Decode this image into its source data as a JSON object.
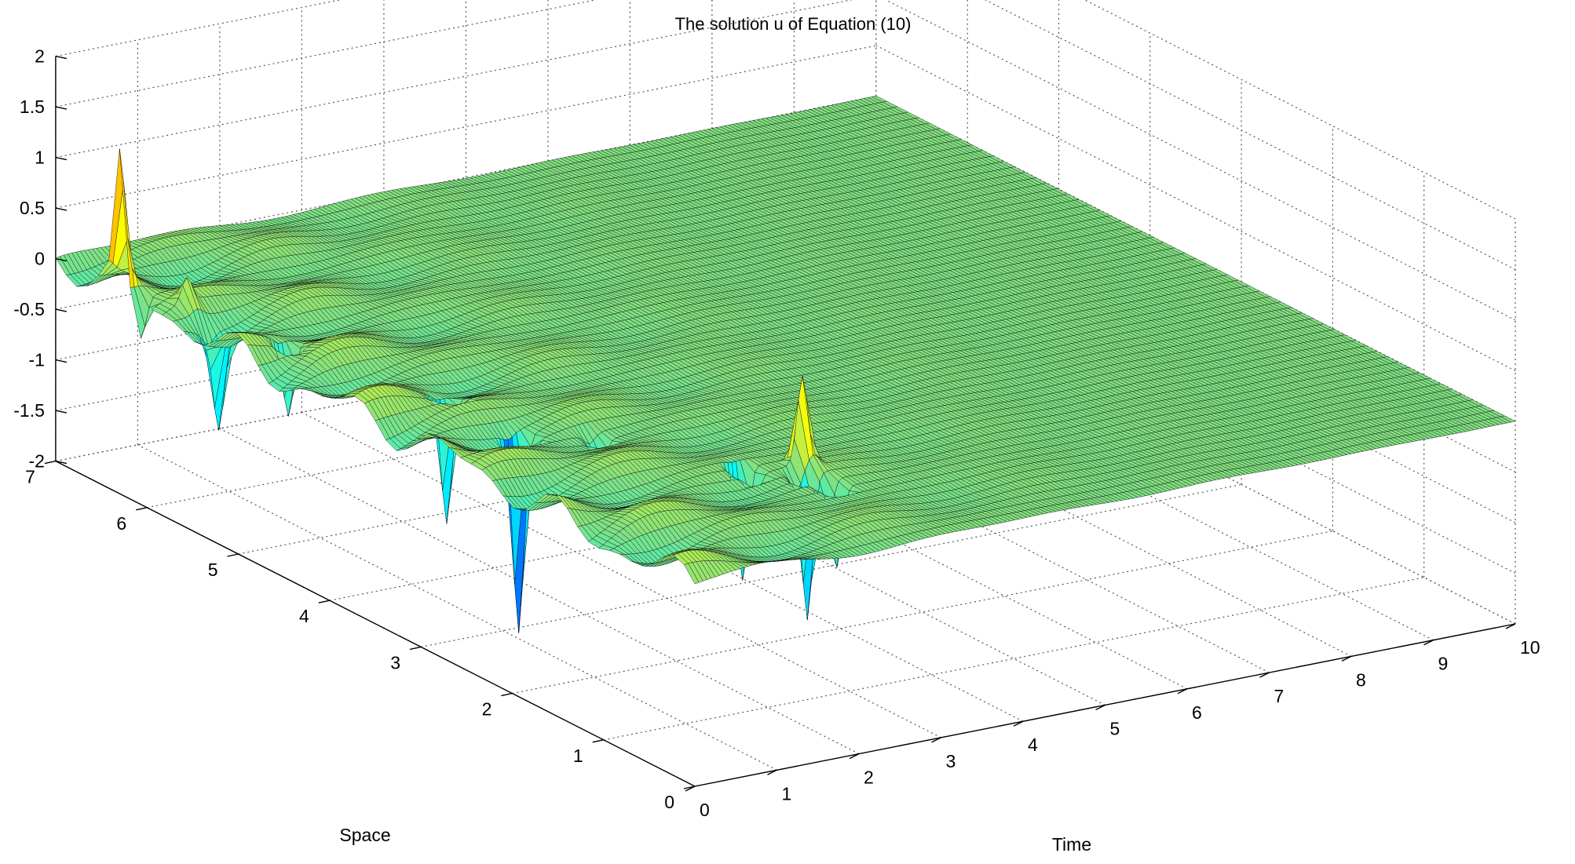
{
  "chart_data": {
    "type": "surface",
    "title": "The solution u of Equation (10)",
    "xlabel": "Time",
    "ylabel": "Space",
    "zlabel": "",
    "xlim": [
      0,
      10
    ],
    "ylim": [
      0,
      7
    ],
    "zlim": [
      -2,
      2
    ],
    "x_ticks": [
      "0",
      "1",
      "2",
      "3",
      "4",
      "5",
      "6",
      "7",
      "8",
      "9",
      "10"
    ],
    "y_ticks": [
      "0",
      "1",
      "2",
      "3",
      "4",
      "5",
      "6",
      "7"
    ],
    "z_ticks": [
      "-2",
      "-1.5",
      "-1",
      "-0.5",
      "0",
      "0.5",
      "1",
      "1.5",
      "2"
    ],
    "grid": true,
    "colormap": "jet",
    "edge_color": "#000000",
    "surface_summary": "u is oscillatory near time 0 and decays to about 0 for time greater than 4",
    "peaks": [
      {
        "time": 0.0,
        "space": 6.3,
        "u": 1.2
      },
      {
        "time": 0.0,
        "space": 6.1,
        "u": -0.5
      },
      {
        "time": 0.3,
        "space": 5.5,
        "u": -0.9
      },
      {
        "time": 0.3,
        "space": 5.8,
        "u": 0.3
      },
      {
        "time": 0.5,
        "space": 4.9,
        "u": -0.7
      },
      {
        "time": 1.0,
        "space": 3.6,
        "u": -1.3
      },
      {
        "time": 0.9,
        "space": 3.2,
        "u": 0.0
      },
      {
        "time": 1.1,
        "space": 2.9,
        "u": -2.0
      },
      {
        "time": 1.5,
        "space": 2.9,
        "u": 0.0
      },
      {
        "time": 1.7,
        "space": 2.6,
        "u": -0.4
      },
      {
        "time": 2.4,
        "space": 1.6,
        "u": -1.4
      },
      {
        "time": 2.8,
        "space": 1.3,
        "u": -1.5
      },
      {
        "time": 2.9,
        "space": 1.1,
        "u": -1.3
      },
      {
        "time": 3.0,
        "space": 1.5,
        "u": 0.9
      }
    ]
  }
}
